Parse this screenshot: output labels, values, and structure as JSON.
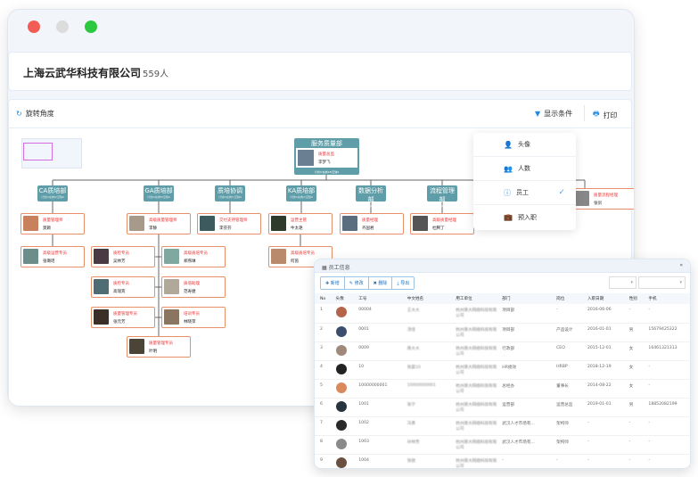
{
  "window": {
    "controls": [
      "close",
      "minimize",
      "maximize"
    ],
    "colors": {
      "close": "#f25c54",
      "minimize": "#dcdcdc",
      "maximize": "#2bc840"
    }
  },
  "header": {
    "company": "上海云武华科技有限公司",
    "count": "559人"
  },
  "toolbar": {
    "rotate": "旋转角度",
    "display_conditions": "显示条件",
    "print": "打印"
  },
  "org": {
    "root": {
      "dept": "服务质量部",
      "role": "质量总监",
      "name": "李梦飞",
      "stats": "计划0/在岗18/空缺0"
    },
    "depts": [
      {
        "name": "CA质培部",
        "stats": "计划0/在岗6/空缺0"
      },
      {
        "name": "GA质培部",
        "stats": "计划0/在岗8/空缺0"
      },
      {
        "name": "质培协调",
        "stats": "计划0/在岗1/空缺0"
      },
      {
        "name": "KA质培部",
        "stats": "计划0/在岗2/空缺0"
      },
      {
        "name": "数据分析部",
        "stats": "计划0/在岗1/空缺0"
      },
      {
        "name": "流程管理部",
        "stats": "计划0/在岗1/空缺0"
      }
    ],
    "people": [
      {
        "role": "质量管理师",
        "name": "莫颖"
      },
      {
        "role": "高级质量管理师",
        "name": "李静"
      },
      {
        "role": "交付支持管理师",
        "name": "李芬芬"
      },
      {
        "role": "运营主管",
        "name": "牛太艳"
      },
      {
        "role": "质量经理",
        "name": "齐国君"
      },
      {
        "role": "高级质量经理",
        "name": "杜腾丁"
      },
      {
        "role": "质量流程经理",
        "name": "张剑"
      },
      {
        "role": "高级运营专员",
        "name": "张璐瑶"
      },
      {
        "role": "质检专员",
        "name": "吴林芳"
      },
      {
        "role": "高级质培专员",
        "name": "郑燕琳"
      },
      {
        "role": "高级质培专员",
        "name": "何茵"
      },
      {
        "role": "质检专员",
        "name": "高瑞宾"
      },
      {
        "role": "质培助理",
        "name": "范寿捷"
      },
      {
        "role": "质量管理专员",
        "name": "张元芳"
      },
      {
        "role": "培训专员",
        "name": "林晓萍"
      },
      {
        "role": "质量管理专员",
        "name": "叶明"
      }
    ]
  },
  "dropdown": {
    "items": [
      {
        "label": "头像",
        "icon": "user-icon"
      },
      {
        "label": "人数",
        "icon": "users-icon"
      },
      {
        "label": "员工",
        "icon": "info-icon",
        "checked": true
      },
      {
        "label": "预入职",
        "icon": "briefcase-icon"
      }
    ]
  },
  "table": {
    "title": "员工信息",
    "collapse": "«",
    "buttons": [
      "新增",
      "修改",
      "删除",
      "导出"
    ],
    "columns": [
      "No",
      "头像",
      "工号",
      "中文姓名",
      "用工单位",
      "部门",
      "岗位",
      "入职日期",
      "性别",
      "手机"
    ],
    "rows": [
      [
        "1",
        "",
        "00004",
        "王大大",
        "杭州匯大网络科技有限公司",
        "项目部",
        "-",
        "2016-06-06",
        "-",
        "-"
      ],
      [
        "2",
        "",
        "0001",
        "汤佳",
        "杭州匯大网络科技有限公司",
        "项目部",
        "产品设计",
        "2016-01-01",
        "男",
        "15679425322"
      ],
      [
        "3",
        "",
        "0009",
        "匯大大",
        "杭州匯大网络科技有限公司",
        "行政部",
        "CEO",
        "2015-12-01",
        "女",
        "16461321313"
      ],
      [
        "4",
        "",
        "10",
        "张晨10",
        "杭州匯大网络科技有限公司",
        "HR绩效",
        "HRBP",
        "2018-12-19",
        "女",
        "-"
      ],
      [
        "5",
        "",
        "10000000001",
        "10000000001",
        "杭州匯大网络科技有限公司",
        "总经办",
        "董事长",
        "2014-08-22",
        "女",
        "-"
      ],
      [
        "6",
        "",
        "1001",
        "张宁",
        "杭州匯大网络科技有限公司",
        "运营部",
        "运营总监",
        "2019-01-01",
        "男",
        "18852082199"
      ],
      [
        "7",
        "",
        "1002",
        "冯勇",
        "杭州匯大网络科技有限公司",
        "武汉人才市场有...",
        "架构师",
        "-",
        "-",
        "-"
      ],
      [
        "8",
        "",
        "1003",
        "孙林芳",
        "杭州匯大网络科技有限公司",
        "武汉人才市场有...",
        "架构师",
        "-",
        "-",
        "-"
      ],
      [
        "9",
        "",
        "1004",
        "张锐",
        "杭州匯大网络科技有限公司",
        "-",
        "-",
        "-",
        "-",
        "-"
      ]
    ]
  },
  "colors": {
    "accent": "#1e88e5",
    "dept": "#5f9ea8",
    "node_border": "#e8906a",
    "role": "#e33333"
  }
}
